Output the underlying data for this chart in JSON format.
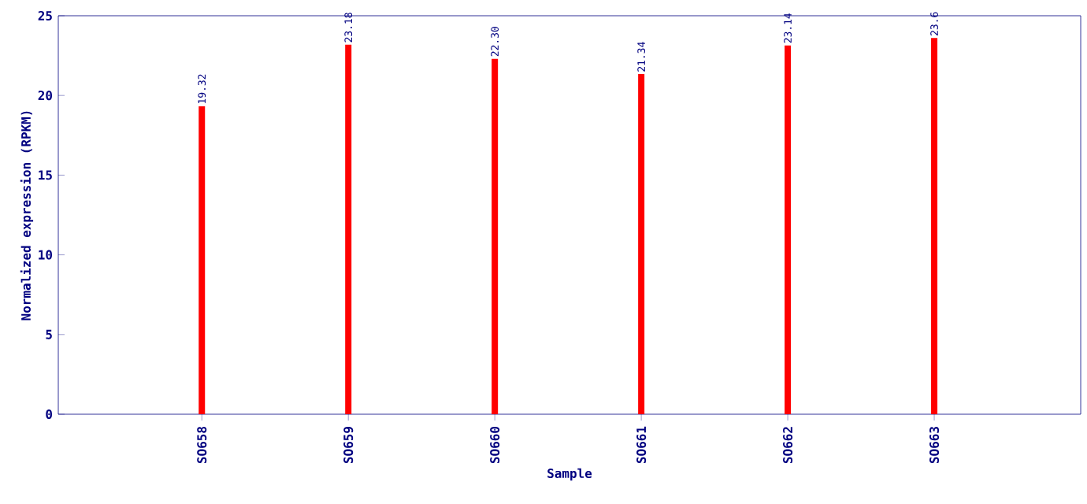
{
  "chart_data": {
    "type": "bar",
    "xlabel": "Sample",
    "ylabel": "Normalized expression (RPKM)",
    "categories": [
      "SO658",
      "SO659",
      "SO660",
      "SO661",
      "SO662",
      "SO663"
    ],
    "values": [
      19.32,
      23.18,
      22.3,
      21.34,
      23.14,
      23.6
    ],
    "value_labels": [
      "19.32",
      "23.18",
      "22.30",
      "21.34",
      "23.14",
      "23.6"
    ],
    "color": "#ff0000",
    "ylim": [
      0,
      25
    ],
    "yticks": [
      0,
      5,
      10,
      15,
      20,
      25
    ]
  }
}
